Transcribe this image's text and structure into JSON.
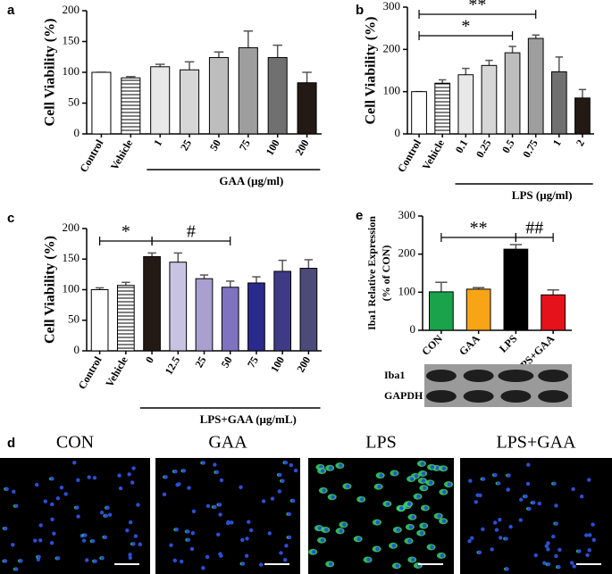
{
  "chart_data": [
    {
      "type": "bar",
      "panel": "a",
      "ylabel": [
        "Cell Viability (%)"
      ],
      "categories": [
        "Control",
        "Vehicle",
        "1",
        "25",
        "50",
        "75",
        "100",
        "200"
      ],
      "values": [
        100,
        91,
        109,
        104,
        124,
        140,
        124,
        83
      ],
      "errors": [
        0,
        2,
        4,
        13,
        9,
        27,
        20,
        17
      ],
      "colors": [
        "#ffffff",
        "#ffffff",
        "#e8e8e8",
        "#d6d6d6",
        "#bdbdbd",
        "#9e9e9e",
        "#707070",
        "#231a16"
      ],
      "hatched": [
        false,
        true,
        false,
        false,
        false,
        false,
        false,
        false
      ],
      "ylim": [
        0,
        200
      ],
      "yticks": [
        0,
        50,
        100,
        150,
        200
      ],
      "group": {
        "label": "GAA (μg/ml)",
        "from": 2,
        "to": 7
      },
      "brackets": []
    },
    {
      "type": "bar",
      "panel": "b",
      "ylabel": [
        "Cell Viability (%)"
      ],
      "categories": [
        "Control",
        "Vehicle",
        "0.1",
        "0.25",
        "0.5",
        "0.75",
        "1",
        "2"
      ],
      "values": [
        100,
        120,
        140,
        162,
        192,
        226,
        147,
        85
      ],
      "errors": [
        0,
        8,
        15,
        12,
        15,
        8,
        35,
        20
      ],
      "colors": [
        "#ffffff",
        "#ffffff",
        "#e8e8e8",
        "#d6d6d6",
        "#bdbdbd",
        "#9e9e9e",
        "#707070",
        "#231a16"
      ],
      "hatched": [
        false,
        true,
        false,
        false,
        false,
        false,
        false,
        false
      ],
      "ylim": [
        0,
        300
      ],
      "yticks": [
        0,
        100,
        200,
        300
      ],
      "group": {
        "label": "LPS (μg/ml)",
        "from": 2,
        "to": 7
      },
      "brackets": [
        {
          "from": 0,
          "to": 5,
          "label": "**"
        },
        {
          "from": 0,
          "to": 4,
          "label": "*"
        }
      ]
    },
    {
      "type": "bar",
      "panel": "c",
      "ylabel": [
        "Cell Viability (%)"
      ],
      "categories": [
        "Control",
        "Vehicle",
        "0",
        "12.5",
        "25",
        "50",
        "75",
        "100",
        "200"
      ],
      "values": [
        100,
        107,
        154,
        145,
        118,
        104,
        111,
        130,
        135
      ],
      "errors": [
        3,
        5,
        6,
        15,
        6,
        10,
        10,
        18,
        14
      ],
      "colors": [
        "#ffffff",
        "#ffffff",
        "#231a16",
        "#c9c3e3",
        "#a9a0d0",
        "#7f72bf",
        "#2a2a8c",
        "#3f3a86",
        "#4b4a78"
      ],
      "hatched": [
        false,
        true,
        false,
        false,
        false,
        false,
        false,
        false,
        false
      ],
      "ylim": [
        0,
        200
      ],
      "yticks": [
        0,
        50,
        100,
        150,
        200
      ],
      "group": {
        "label": "LPS+GAA (μg/mL)",
        "from": 2,
        "to": 8
      },
      "brackets": [
        {
          "from": 0,
          "to": 2,
          "label": "*"
        },
        {
          "from": 2,
          "to": 5,
          "label": "#"
        }
      ]
    },
    {
      "type": "bar",
      "panel": "e",
      "ylabel": [
        "Iba1 Relative Expression",
        "(% of CON)"
      ],
      "categories": [
        "CON",
        "GAA",
        "LPS",
        "LPS+GAA"
      ],
      "values": [
        101,
        108,
        213,
        93
      ],
      "errors": [
        25,
        4,
        12,
        13
      ],
      "colors": [
        "#1aa34a",
        "#f7a416",
        "#000000",
        "#e5121c"
      ],
      "hatched": [
        false,
        false,
        false,
        false
      ],
      "ylim": [
        0,
        300
      ],
      "yticks": [
        0,
        100,
        200,
        300
      ],
      "brackets": [
        {
          "from": 0,
          "to": 2,
          "label": "**"
        },
        {
          "from": 2,
          "to": 3,
          "label": "##"
        }
      ],
      "blot_labels": [
        "Iba1",
        "GAPDH"
      ]
    }
  ],
  "figure_d": {
    "panel": "d",
    "labels": [
      "CON",
      "GAA",
      "LPS",
      "LPS+GAA"
    ]
  }
}
